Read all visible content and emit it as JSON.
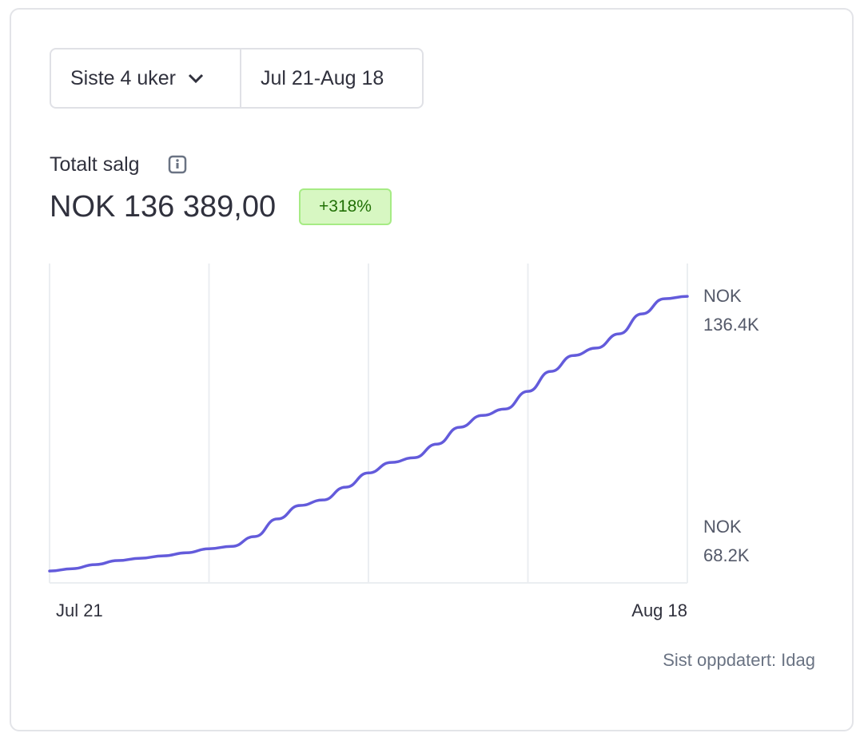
{
  "controls": {
    "period": "Siste 4 uker",
    "range": "Jul 21-Aug 18"
  },
  "metric": {
    "label": "Totalt salg",
    "value": "NOK 136 389,00",
    "change": "+318%"
  },
  "footer": "Sist oppdatert: Idag",
  "chart_data": {
    "type": "line",
    "categories": [
      "Jul 21",
      null,
      null,
      null,
      null,
      null,
      null,
      null,
      null,
      null,
      null,
      null,
      null,
      null,
      null,
      null,
      null,
      null,
      null,
      null,
      null,
      null,
      null,
      null,
      null,
      null,
      null,
      null,
      "Aug 18"
    ],
    "series": [
      {
        "color": "#635bdb",
        "values": [
          55200,
          55900,
          57100,
          58300,
          59000,
          59700,
          60600,
          61800,
          62500,
          65400,
          70600,
          74600,
          76200,
          80000,
          84200,
          87300,
          88700,
          92700,
          97700,
          101200,
          103100,
          108300,
          114200,
          118900,
          121100,
          125300,
          131200,
          135700,
          136389
        ]
      }
    ],
    "ylim": [
      51700,
      146100
    ],
    "yticks": [
      {
        "value": 68200,
        "label": "NOK 68.2K"
      },
      {
        "value": 136400,
        "label": "NOK 136.4K"
      }
    ],
    "grid": true
  }
}
